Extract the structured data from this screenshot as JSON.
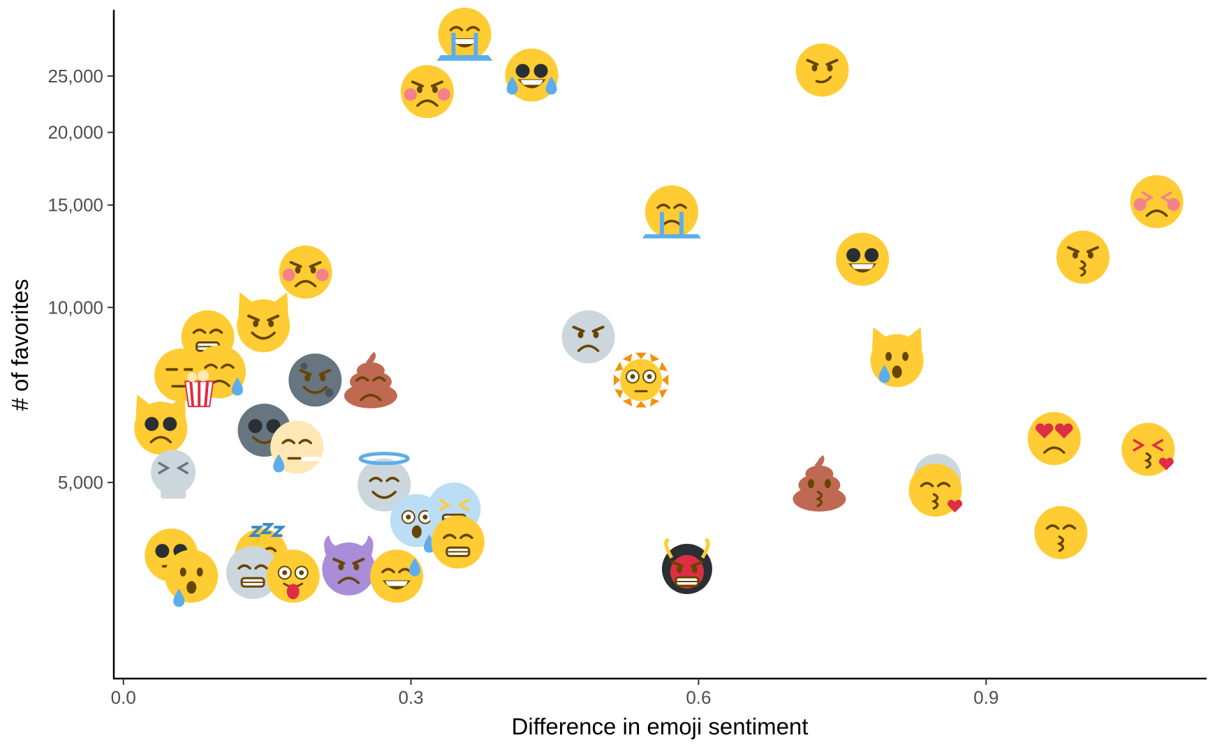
{
  "chart_data": {
    "type": "scatter",
    "title": "",
    "xlabel": "Difference in emoji sentiment",
    "ylabel": "# of favorites",
    "xlim": [
      -0.01,
      1.13
    ],
    "ylim": [
      2300,
      32500
    ],
    "yscale": "log",
    "grid": false,
    "legend": "none",
    "x_ticks": [
      {
        "value": 0.0,
        "label": "0.0"
      },
      {
        "value": 0.3,
        "label": "0.3"
      },
      {
        "value": 0.6,
        "label": "0.6"
      },
      {
        "value": 0.9,
        "label": "0.9"
      }
    ],
    "y_ticks": [
      {
        "value": 5000,
        "label": "5,000"
      },
      {
        "value": 10000,
        "label": "10,000"
      },
      {
        "value": 15000,
        "label": "15,000"
      },
      {
        "value": 20000,
        "label": "20,000"
      },
      {
        "value": 25000,
        "label": "25,000"
      }
    ],
    "points": [
      {
        "x": 0.356,
        "y": 29500,
        "icon": "crying-purple-face",
        "base": "#FFCC33",
        "accent": "#5DADEC"
      },
      {
        "x": 0.426,
        "y": 25100,
        "icon": "tears-of-joy-face",
        "base": "#FFCC33",
        "accent": "#5DADEC"
      },
      {
        "x": 0.317,
        "y": 23500,
        "icon": "pouting-face",
        "base": "#FFCC33",
        "accent": "#F4808C"
      },
      {
        "x": 0.729,
        "y": 25600,
        "icon": "smirking-face",
        "base": "#FFCC33",
        "accent": "#664500"
      },
      {
        "x": 0.572,
        "y": 14600,
        "icon": "crying-face",
        "base": "#FFCC33",
        "accent": "#5DADEC"
      },
      {
        "x": 1.078,
        "y": 15200,
        "icon": "persevering-face",
        "base": "#FFCC33",
        "accent": "#F4808C"
      },
      {
        "x": 0.771,
        "y": 12100,
        "icon": "grinning-sunglasses-face",
        "base": "#FFCC33",
        "accent": "#292F33"
      },
      {
        "x": 1.001,
        "y": 12200,
        "icon": "kissing-face",
        "base": "#FFCC33",
        "accent": "#664500"
      },
      {
        "x": 0.19,
        "y": 11500,
        "icon": "angry-face",
        "base": "#FFCC33",
        "accent": "#F4808C"
      },
      {
        "x": 0.146,
        "y": 9300,
        "icon": "smirking-cat-face",
        "base": "#FFCC33",
        "accent": "#6E5494"
      },
      {
        "x": 0.088,
        "y": 8900,
        "icon": "grimacing-face",
        "base": "#FFCC33",
        "accent": "#664500"
      },
      {
        "x": 0.485,
        "y": 8900,
        "icon": "frowning-moon-face",
        "base": "#CCD6DD",
        "accent": "#292F33"
      },
      {
        "x": 0.807,
        "y": 8100,
        "icon": "crying-cat-face",
        "base": "#FFCC33",
        "accent": "#5DADEC"
      },
      {
        "x": 0.06,
        "y": 7650,
        "icon": "expressionless-face",
        "base": "#FFCC33",
        "accent": "#664500"
      },
      {
        "x": 0.1,
        "y": 7750,
        "icon": "sad-sweat-face",
        "base": "#FFCC33",
        "accent": "#5DADEC"
      },
      {
        "x": 0.079,
        "y": 7300,
        "icon": "popcorn-icon",
        "base": "#FFFFFF",
        "accent": "#DD2E44"
      },
      {
        "x": 0.2,
        "y": 7500,
        "icon": "new-moon-face",
        "base": "#66757F",
        "accent": "#553788"
      },
      {
        "x": 0.258,
        "y": 7450,
        "icon": "pile-of-poo",
        "base": "#BF6952",
        "accent": "#664500"
      },
      {
        "x": 0.54,
        "y": 7500,
        "icon": "sun-with-face",
        "base": "#FFCC33",
        "accent": "#F4900C"
      },
      {
        "x": 0.039,
        "y": 6200,
        "icon": "pouting-cat-face",
        "base": "#FFCC33",
        "accent": "#292F33"
      },
      {
        "x": 0.147,
        "y": 6150,
        "icon": "alien-face",
        "base": "#66757F",
        "accent": "#292F33"
      },
      {
        "x": 0.181,
        "y": 5750,
        "icon": "smoking-face",
        "base": "#FFE8B6",
        "accent": "#5DADEC"
      },
      {
        "x": 0.971,
        "y": 5950,
        "icon": "heart-eyes-face",
        "base": "#FFCC33",
        "accent": "#DD2E44"
      },
      {
        "x": 1.069,
        "y": 5700,
        "icon": "kissing-heart-face",
        "base": "#FFCC33",
        "accent": "#DD2E44"
      },
      {
        "x": 0.052,
        "y": 5150,
        "icon": "skull-face",
        "base": "#CCD6DD",
        "accent": "#66757F"
      },
      {
        "x": 0.272,
        "y": 4950,
        "icon": "halo-face",
        "base": "#CCD6DD",
        "accent": "#5DADEC"
      },
      {
        "x": 0.726,
        "y": 4950,
        "icon": "kissing-poo",
        "base": "#BF6952",
        "accent": "#664500"
      },
      {
        "x": 0.849,
        "y": 5100,
        "icon": "old-person-face",
        "base": "#CCD6DD",
        "accent": "#664500"
      },
      {
        "x": 0.847,
        "y": 4850,
        "icon": "pensive-kiss-face",
        "base": "#FFCC33",
        "accent": "#DD2E44"
      },
      {
        "x": 0.306,
        "y": 4300,
        "icon": "crying-helmet-face",
        "base": "#BBDDF5",
        "accent": "#5DADEC"
      },
      {
        "x": 0.345,
        "y": 4500,
        "icon": "scream-face",
        "base": "#BBDDF5",
        "accent": "#FFCC33"
      },
      {
        "x": 0.349,
        "y": 3950,
        "icon": "grimacing-face",
        "base": "#FFCC33",
        "accent": "#664500"
      },
      {
        "x": 0.978,
        "y": 4100,
        "icon": "pensive-face",
        "base": "#FFCC33",
        "accent": "#664500"
      },
      {
        "x": 0.05,
        "y": 3750,
        "icon": "sunglasses-face",
        "base": "#FFCC33",
        "accent": "#292F33"
      },
      {
        "x": 0.071,
        "y": 3450,
        "icon": "worried-sweat-face",
        "base": "#FFCC33",
        "accent": "#5DADEC"
      },
      {
        "x": 0.144,
        "y": 3750,
        "icon": "sleeping-face",
        "base": "#FFCC33",
        "accent": "#5DADEC"
      },
      {
        "x": 0.135,
        "y": 3500,
        "icon": "mummy-face",
        "base": "#CCD6DD",
        "accent": "#66757F"
      },
      {
        "x": 0.177,
        "y": 3450,
        "icon": "goggles-tongue-face",
        "base": "#FFCC33",
        "accent": "#DD2E44"
      },
      {
        "x": 0.235,
        "y": 3550,
        "icon": "smiling-imp",
        "base": "#AA8DD8",
        "accent": "#553788"
      },
      {
        "x": 0.285,
        "y": 3450,
        "icon": "grinning-sweat-face",
        "base": "#FFCC33",
        "accent": "#5DADEC"
      },
      {
        "x": 0.588,
        "y": 3550,
        "icon": "japanese-ogre",
        "base": "#DD2E44",
        "accent": "#292F33"
      }
    ]
  }
}
